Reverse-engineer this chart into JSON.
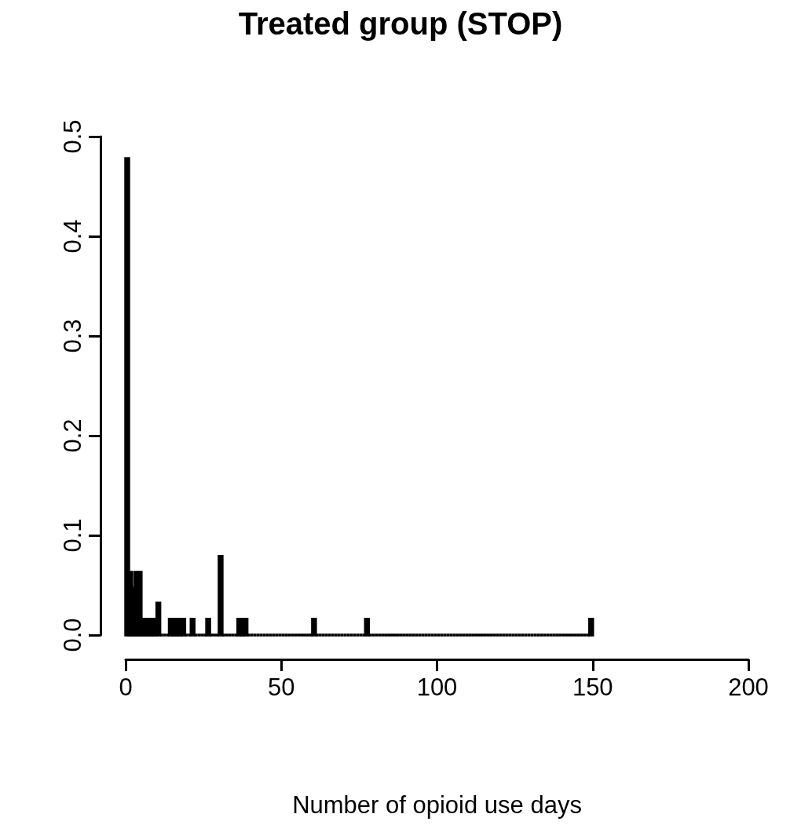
{
  "chart_data": {
    "type": "histogram",
    "title": "Treated group (STOP)",
    "xlabel": "Number of opioid use days",
    "bins": [
      0,
      1,
      2,
      3,
      4,
      5,
      6,
      7,
      8,
      9,
      10,
      11,
      12,
      13,
      14,
      15,
      16,
      17,
      18,
      19,
      20,
      21,
      22,
      23,
      24,
      25,
      26,
      27,
      28,
      29,
      30,
      31,
      32,
      33,
      34,
      35,
      36,
      37,
      38,
      39,
      40,
      41,
      42,
      43,
      44,
      45,
      46,
      47,
      48,
      49,
      50,
      51,
      52,
      53,
      54,
      55,
      56,
      57,
      58,
      59,
      60,
      61,
      62,
      63,
      64,
      65,
      66,
      67,
      68,
      69,
      70,
      71,
      72,
      73,
      74,
      75,
      76,
      77,
      78,
      79,
      80,
      81,
      82,
      83,
      84,
      85,
      86,
      87,
      88,
      89,
      90,
      91,
      92,
      93,
      94,
      95,
      96,
      97,
      98,
      99,
      100,
      101,
      102,
      103,
      104,
      105,
      106,
      107,
      108,
      109,
      110,
      111,
      112,
      113,
      114,
      115,
      116,
      117,
      118,
      119,
      120,
      121,
      122,
      123,
      124,
      125,
      126,
      127,
      128,
      129,
      130,
      131,
      132,
      133,
      134,
      135,
      136,
      137,
      138,
      139,
      140,
      141,
      142,
      143,
      144,
      145,
      146,
      147,
      148,
      149,
      150
    ],
    "values": [
      0.478,
      0.063,
      0.047,
      0.063,
      0.063,
      0.016,
      0.016,
      0.016,
      0.016,
      0.016,
      0.032,
      0,
      0,
      0,
      0.016,
      0.016,
      0.016,
      0.016,
      0.016,
      0,
      0,
      0.016,
      0,
      0,
      0,
      0,
      0.016,
      0,
      0,
      0,
      0.079,
      0,
      0,
      0,
      0,
      0,
      0.016,
      0.016,
      0.016,
      0,
      0,
      0,
      0,
      0,
      0,
      0,
      0,
      0,
      0,
      0,
      0,
      0,
      0,
      0,
      0,
      0,
      0,
      0,
      0,
      0,
      0.016,
      0,
      0,
      0,
      0,
      0,
      0,
      0,
      0,
      0,
      0,
      0,
      0,
      0,
      0,
      0,
      0,
      0.016,
      0,
      0,
      0,
      0,
      0,
      0,
      0,
      0,
      0,
      0,
      0,
      0,
      0,
      0,
      0,
      0,
      0,
      0,
      0,
      0,
      0,
      0,
      0,
      0,
      0,
      0,
      0,
      0,
      0,
      0,
      0,
      0,
      0,
      0,
      0,
      0,
      0,
      0,
      0,
      0,
      0,
      0,
      0,
      0,
      0,
      0,
      0,
      0,
      0,
      0,
      0,
      0,
      0,
      0,
      0,
      0,
      0,
      0,
      0,
      0,
      0,
      0,
      0,
      0,
      0,
      0,
      0,
      0,
      0,
      0,
      0,
      0.016
    ],
    "color": "#000000",
    "xlim": [
      0,
      200
    ],
    "xticks": [
      0,
      50,
      100,
      150,
      200
    ],
    "ylim": [
      0,
      0.5
    ],
    "yticks": [
      {
        "value": 0,
        "label": "0.0"
      },
      {
        "value": 0.1,
        "label": "0.1"
      },
      {
        "value": 0.2,
        "label": "0.2"
      },
      {
        "value": 0.3,
        "label": "0.3"
      },
      {
        "value": 0.4,
        "label": "0.4"
      },
      {
        "value": 0.5,
        "label": "0.5"
      }
    ],
    "grid": false
  }
}
